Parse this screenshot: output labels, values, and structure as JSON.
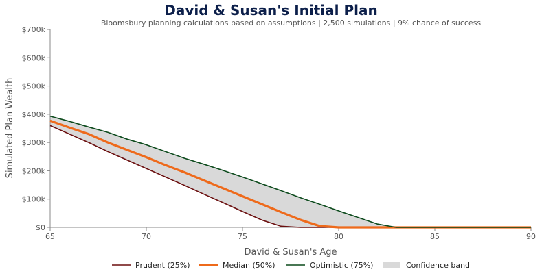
{
  "chart_data": {
    "type": "line",
    "title": "David & Susan's Initial Plan",
    "subtitle": "Bloomsbury planning calculations based on assumptions | 2,500 simulations | 9% chance of success",
    "xlabel": "David & Susan's Age",
    "ylabel": "Simulated Plan Wealth",
    "xlim": [
      65,
      90
    ],
    "ylim": [
      0,
      700000
    ],
    "x_ticks": [
      "65",
      "70",
      "75",
      "80",
      "85",
      "90"
    ],
    "y_ticks": [
      "$0",
      "$100k",
      "$200k",
      "$300k",
      "$400k",
      "$500k",
      "$600k",
      "$700k"
    ],
    "grid": false,
    "legend_position": "bottom",
    "legend": [
      "Prudent (25%)",
      "Median (50%)",
      "Optimistic (75%)",
      "Confidence band"
    ],
    "series": [
      {
        "name": "Prudent (25%)",
        "color": "#6b0f0f",
        "x": [
          65,
          66,
          67,
          68,
          69,
          70,
          71,
          72,
          73,
          74,
          75,
          76,
          77,
          78,
          79,
          80,
          90
        ],
        "y": [
          360000,
          330000,
          300000,
          268000,
          238000,
          208000,
          178000,
          148000,
          117000,
          87000,
          56000,
          26000,
          4000,
          0,
          0,
          0,
          0
        ]
      },
      {
        "name": "Median (50%)",
        "color": "#ee6a1b",
        "x": [
          65,
          66,
          67,
          68,
          69,
          70,
          71,
          72,
          73,
          74,
          75,
          76,
          77,
          78,
          79,
          80,
          90
        ],
        "y": [
          377000,
          353000,
          330000,
          300000,
          274000,
          248000,
          220000,
          194000,
          166000,
          138000,
          110000,
          82000,
          54000,
          27000,
          5000,
          0,
          0
        ]
      },
      {
        "name": "Optimistic (75%)",
        "color": "#0c4a1c",
        "x": [
          65,
          66,
          67,
          68,
          69,
          70,
          71,
          72,
          73,
          74,
          75,
          76,
          77,
          78,
          79,
          80,
          81,
          82,
          83,
          90
        ],
        "y": [
          393000,
          375000,
          355000,
          336000,
          312000,
          292000,
          268000,
          244000,
          223000,
          201000,
          178000,
          154000,
          130000,
          105000,
          82000,
          58000,
          35000,
          12000,
          0,
          0
        ]
      }
    ],
    "band": {
      "name": "Confidence band",
      "color": "#d9d9d9",
      "lower_series": "Prudent (25%)",
      "upper_series": "Optimistic (75%)"
    }
  }
}
